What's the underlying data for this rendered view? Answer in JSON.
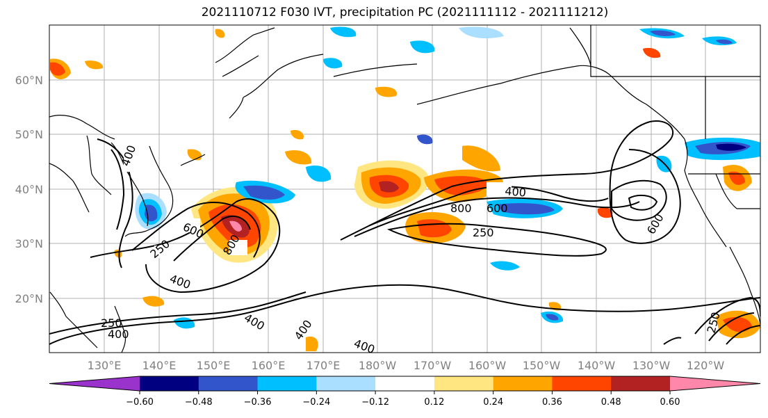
{
  "title": "2021110712 F030 IVT, precipitation PC (2021111112 - 2021111212)",
  "map": {
    "lat_labels": [
      "60°N",
      "50°N",
      "40°N",
      "30°N",
      "20°N"
    ],
    "lon_labels": [
      "130°E",
      "140°E",
      "150°E",
      "160°E",
      "170°E",
      "180°W",
      "170°W",
      "160°W",
      "150°W",
      "140°W",
      "130°W",
      "120°W"
    ],
    "contour_labels": [
      {
        "text": "400"
      },
      {
        "text": "800"
      },
      {
        "text": "600"
      },
      {
        "text": "250"
      },
      {
        "text": "600"
      },
      {
        "text": "800"
      },
      {
        "text": "250"
      },
      {
        "text": "400"
      },
      {
        "text": "250"
      },
      {
        "text": "400"
      },
      {
        "text": "400"
      },
      {
        "text": "400"
      },
      {
        "text": "400"
      },
      {
        "text": "400"
      },
      {
        "text": "600"
      },
      {
        "text": "250"
      }
    ]
  },
  "colorbar": {
    "ticks": [
      "−0.60",
      "−0.48",
      "−0.36",
      "−0.24",
      "−0.12",
      "0.12",
      "0.24",
      "0.36",
      "0.48",
      "0.60"
    ],
    "colors": [
      "#9933cc",
      "#000080",
      "#3355cc",
      "#00bfff",
      "#aadfff",
      "#ffffff",
      "#ffe680",
      "#ffa500",
      "#ff4500",
      "#b22222",
      "#ff88aa"
    ]
  },
  "colors": {
    "neg_strong": "#3355cc",
    "neg_mid": "#00bfff",
    "neg_light": "#aadfff",
    "pos_light": "#ffe680",
    "pos_mid": "#ffa500",
    "pos_strong": "#ff4500",
    "pos_vstrong": "#b22222",
    "pos_extreme": "#ff88aa"
  }
}
